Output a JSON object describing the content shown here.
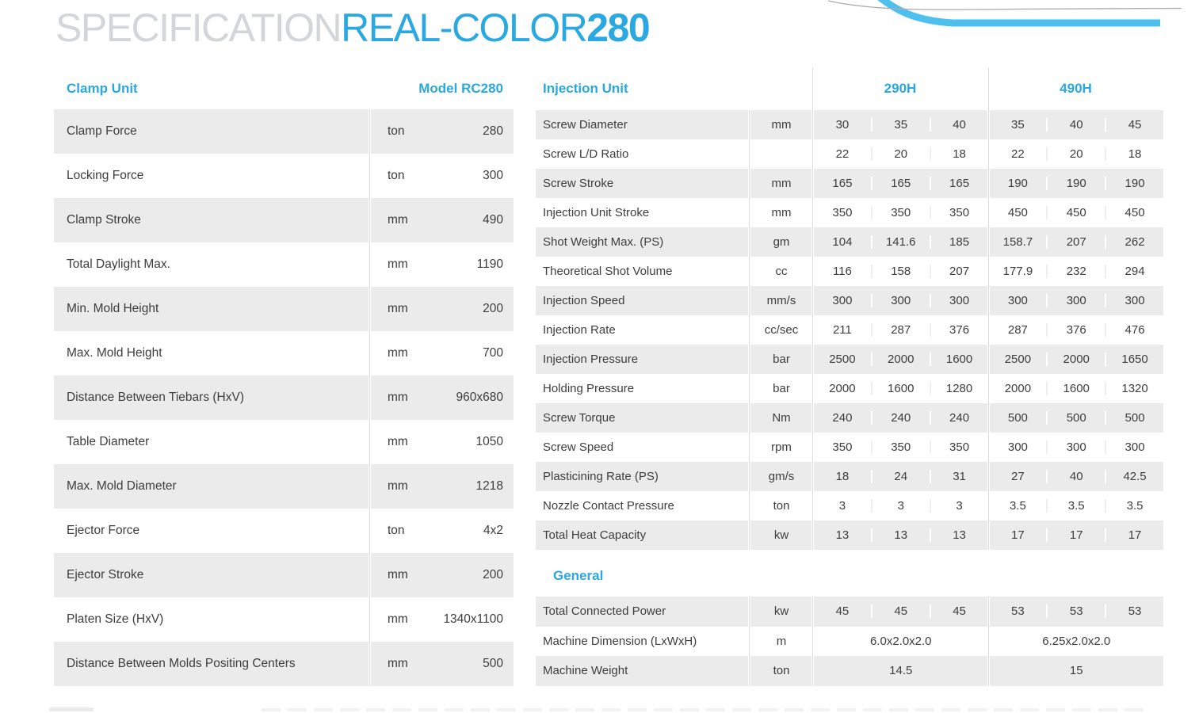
{
  "header": {
    "title_specification": "SPECIFICATION",
    "title_model": "REAL-COLOR",
    "title_number": "280"
  },
  "colors": {
    "accent_blue": "#29A8E1",
    "swoosh_blue": "#4DC0EF",
    "title_gray": "#D3D6D8",
    "row_stripe_gray": "#EBEBEB",
    "body_text": "#3D3D3D",
    "divider_gray": "#DCDCDC"
  },
  "decor": {
    "corner_graphic": "swoosh-curves"
  },
  "clamp_table": {
    "title": "Clamp Unit",
    "model_header": "Model RC280",
    "rows": [
      {
        "label": "Clamp Force",
        "unit": "ton",
        "value": "280"
      },
      {
        "label": "Locking Force",
        "unit": "ton",
        "value": "300"
      },
      {
        "label": "Clamp Stroke",
        "unit": "mm",
        "value": "490"
      },
      {
        "label": "Total Daylight Max.",
        "unit": "mm",
        "value": "1190"
      },
      {
        "label": "Min. Mold Height",
        "unit": "mm",
        "value": "200"
      },
      {
        "label": "Max. Mold Height",
        "unit": "mm",
        "value": "700"
      },
      {
        "label": "Distance Between Tiebars (HxV)",
        "unit": "mm",
        "value": "960x680"
      },
      {
        "label": "Table Diameter",
        "unit": "mm",
        "value": "1050"
      },
      {
        "label": "Max. Mold Diameter",
        "unit": "mm",
        "value": "1218"
      },
      {
        "label": "Ejector Force",
        "unit": "ton",
        "value": "4x2"
      },
      {
        "label": "Ejector Stroke",
        "unit": "mm",
        "value": "200"
      },
      {
        "label": "Platen Size (HxV)",
        "unit": "mm",
        "value": "1340x1100"
      },
      {
        "label": "Distance Between Molds Positing Centers",
        "unit": "mm",
        "value": "500"
      }
    ]
  },
  "injection_table": {
    "title": "Injection Unit",
    "group_headers": [
      "290H",
      "490H"
    ],
    "rows": [
      {
        "label": "Screw Diameter",
        "unit": "mm",
        "values": [
          "30",
          "35",
          "40",
          "35",
          "40",
          "45"
        ]
      },
      {
        "label": "Screw L/D Ratio",
        "unit": "",
        "values": [
          "22",
          "20",
          "18",
          "22",
          "20",
          "18"
        ]
      },
      {
        "label": "Screw Stroke",
        "unit": "mm",
        "values": [
          "165",
          "165",
          "165",
          "190",
          "190",
          "190"
        ]
      },
      {
        "label": "Injection Unit Stroke",
        "unit": "mm",
        "values": [
          "350",
          "350",
          "350",
          "450",
          "450",
          "450"
        ]
      },
      {
        "label": "Shot Weight Max. (PS)",
        "unit": "gm",
        "values": [
          "104",
          "141.6",
          "185",
          "158.7",
          "207",
          "262"
        ]
      },
      {
        "label": "Theoretical Shot Volume",
        "unit": "cc",
        "values": [
          "116",
          "158",
          "207",
          "177.9",
          "232",
          "294"
        ]
      },
      {
        "label": "Injection Speed",
        "unit": "mm/s",
        "values": [
          "300",
          "300",
          "300",
          "300",
          "300",
          "300"
        ]
      },
      {
        "label": "Injection Rate",
        "unit": "cc/sec",
        "values": [
          "211",
          "287",
          "376",
          "287",
          "376",
          "476"
        ]
      },
      {
        "label": "Injection Pressure",
        "unit": "bar",
        "values": [
          "2500",
          "2000",
          "1600",
          "2500",
          "2000",
          "1650"
        ]
      },
      {
        "label": "Holding Pressure",
        "unit": "bar",
        "values": [
          "2000",
          "1600",
          "1280",
          "2000",
          "1600",
          "1320"
        ]
      },
      {
        "label": "Screw Torque",
        "unit": "Nm",
        "values": [
          "240",
          "240",
          "240",
          "500",
          "500",
          "500"
        ]
      },
      {
        "label": "Screw Speed",
        "unit": "rpm",
        "values": [
          "350",
          "350",
          "350",
          "300",
          "300",
          "300"
        ]
      },
      {
        "label": "Plasticining Rate (PS)",
        "unit": "gm/s",
        "values": [
          "18",
          "24",
          "31",
          "27",
          "40",
          "42.5"
        ]
      },
      {
        "label": "Nozzle Contact Pressure",
        "unit": "ton",
        "values": [
          "3",
          "3",
          "3",
          "3.5",
          "3.5",
          "3.5"
        ]
      },
      {
        "label": "Total Heat Capacity",
        "unit": "kw",
        "values": [
          "13",
          "13",
          "13",
          "17",
          "17",
          "17"
        ]
      }
    ]
  },
  "general_table": {
    "title": "General",
    "rows": [
      {
        "label": "Total Connected Power",
        "unit": "kw",
        "values": [
          "45",
          "45",
          "45",
          "53",
          "53",
          "53"
        ]
      },
      {
        "label": "Machine Dimension (LxWxH)",
        "unit": "m",
        "merged_values": [
          "6.0x2.0x2.0",
          "6.25x2.0x2.0"
        ]
      },
      {
        "label": "Machine Weight",
        "unit": "ton",
        "merged_values": [
          "14.5",
          "15"
        ]
      }
    ]
  }
}
